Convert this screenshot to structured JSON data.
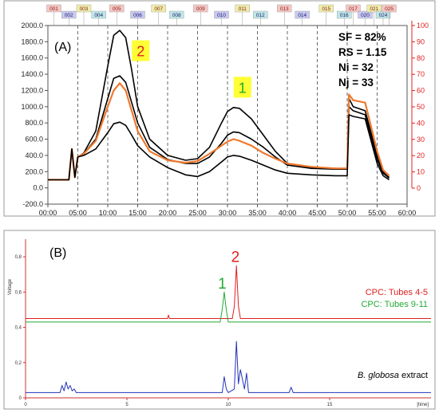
{
  "chart_data": [
    {
      "type": "line",
      "panel_label": "(A)",
      "x_unit": "mm:ss",
      "xlim": [
        0,
        60
      ],
      "x_ticks": [
        "00:00",
        "05:00",
        "10:00",
        "15:00",
        "20:00",
        "25:00",
        "30:00",
        "35:00",
        "40:00",
        "45:00",
        "50:00",
        "55:00",
        "60:00"
      ],
      "ylim": [
        -200,
        2000
      ],
      "y_ticks": [
        "-200.0",
        "0.0",
        "200.0",
        "400.0",
        "600.0",
        "800.0",
        "1000.0",
        "1200.0",
        "1400.0",
        "1600.0",
        "1800.0",
        "2000.0"
      ],
      "y2lim": [
        0,
        100
      ],
      "y2_ticks": [
        "0",
        "10",
        "20",
        "30",
        "40",
        "50",
        "60",
        "70",
        "80",
        "90",
        "100"
      ],
      "grid": "dashed vertical every 5 min",
      "tubes": [
        {
          "label": "001",
          "x": 1.0,
          "row": 0
        },
        {
          "label": "002",
          "x": 3.5,
          "row": 1
        },
        {
          "label": "003",
          "x": 6.0,
          "row": 0
        },
        {
          "label": "004",
          "x": 8.5,
          "row": 1
        },
        {
          "label": "005",
          "x": 11.5,
          "row": 0
        },
        {
          "label": "006",
          "x": 15.0,
          "row": 1
        },
        {
          "label": "007",
          "x": 18.5,
          "row": 0
        },
        {
          "label": "008",
          "x": 21.5,
          "row": 1
        },
        {
          "label": "009",
          "x": 25.5,
          "row": 0
        },
        {
          "label": "010",
          "x": 29.0,
          "row": 1
        },
        {
          "label": "011",
          "x": 32.5,
          "row": 0
        },
        {
          "label": "012",
          "x": 35.5,
          "row": 1
        },
        {
          "label": "013",
          "x": 39.5,
          "row": 0
        },
        {
          "label": "014",
          "x": 42.5,
          "row": 1
        },
        {
          "label": "015",
          "x": 46.5,
          "row": 0
        },
        {
          "label": "016",
          "x": 49.5,
          "row": 1
        },
        {
          "label": "017",
          "x": 51.0,
          "row": 0
        },
        {
          "label": "020",
          "x": 53.0,
          "row": 1
        },
        {
          "label": "021",
          "x": 54.5,
          "row": 0
        },
        {
          "label": "024",
          "x": 56.0,
          "row": 1
        },
        {
          "label": "025",
          "x": 57.0,
          "row": 0
        }
      ],
      "tube_colors": [
        "#f4c7c3",
        "#c9c9f0",
        "#eeeeaa",
        "#bfe6e6"
      ],
      "series": [
        {
          "color": "#000000",
          "x": [
            0,
            0.5,
            3.5,
            4,
            4.5,
            5,
            6,
            8,
            10,
            11,
            12,
            13,
            14,
            15,
            17,
            20,
            23,
            25,
            27,
            29,
            30,
            31,
            32,
            34,
            36,
            38,
            40,
            44,
            48,
            50,
            50.3,
            51,
            53,
            55,
            56,
            57
          ],
          "values": [
            100,
            100,
            100,
            480,
            130,
            380,
            430,
            700,
            1500,
            1880,
            1940,
            1850,
            1450,
            1000,
            600,
            400,
            340,
            360,
            500,
            800,
            940,
            990,
            980,
            850,
            650,
            450,
            300,
            250,
            240,
            230,
            1100,
            1000,
            950,
            400,
            200,
            130
          ]
        },
        {
          "color": "#000000",
          "x": [
            0,
            0.5,
            3.5,
            4,
            4.5,
            5,
            6,
            8,
            10,
            11,
            12,
            13,
            14,
            15,
            17,
            20,
            23,
            25,
            27,
            29,
            30,
            31,
            32,
            34,
            36,
            38,
            40,
            44,
            48,
            50,
            50.3,
            51,
            53,
            55,
            56,
            57
          ],
          "values": [
            100,
            100,
            100,
            480,
            130,
            380,
            420,
            600,
            1100,
            1350,
            1380,
            1300,
            1050,
            800,
            500,
            350,
            300,
            300,
            380,
            550,
            650,
            690,
            680,
            600,
            500,
            380,
            280,
            240,
            230,
            230,
            1000,
            950,
            900,
            350,
            180,
            120
          ]
        },
        {
          "color": "#ee7a30",
          "x": [
            0,
            0.5,
            3.5,
            4,
            4.5,
            5,
            6,
            8,
            10,
            11,
            12,
            13,
            14,
            15,
            17,
            20,
            23,
            25,
            27,
            29,
            30,
            31,
            32,
            34,
            36,
            38,
            40,
            44,
            48,
            50,
            50.3,
            51,
            53,
            55,
            56,
            57
          ],
          "values": [
            100,
            100,
            100,
            480,
            130,
            380,
            420,
            580,
            1000,
            1200,
            1290,
            1200,
            950,
            700,
            450,
            340,
            310,
            330,
            420,
            520,
            570,
            600,
            580,
            520,
            430,
            360,
            300,
            260,
            240,
            240,
            1150,
            1080,
            1050,
            450,
            220,
            150
          ]
        },
        {
          "color": "#000000",
          "x": [
            0,
            0.5,
            3.5,
            4,
            4.5,
            5,
            6,
            8,
            10,
            11,
            12,
            13,
            14,
            15,
            17,
            20,
            23,
            25,
            27,
            29,
            30,
            31,
            32,
            34,
            36,
            38,
            40,
            44,
            48,
            50,
            50.3,
            51,
            53,
            55,
            56,
            57
          ],
          "values": [
            100,
            100,
            100,
            480,
            130,
            380,
            400,
            480,
            680,
            790,
            810,
            770,
            650,
            520,
            380,
            250,
            160,
            140,
            200,
            320,
            380,
            400,
            390,
            340,
            280,
            220,
            180,
            160,
            150,
            150,
            900,
            880,
            850,
            300,
            150,
            100
          ]
        }
      ],
      "peak_labels": [
        {
          "text": "2",
          "x": 15.5,
          "y": 1680,
          "text_color": "#e02020",
          "bg": "#ffff33"
        },
        {
          "text": "1",
          "x": 32.5,
          "y": 1230,
          "text_color": "#22aa33",
          "bg": "#ffff33"
        }
      ],
      "stats": [
        "SF = 82%",
        "RS = 1.15",
        "Ni = 32",
        "Nj = 33"
      ]
    },
    {
      "type": "line",
      "panel_label": "(B)",
      "ylabel": "Voltage",
      "xlabel": "[time]",
      "xlim": [
        0,
        20
      ],
      "x_ticks": [
        "0",
        "5",
        "10",
        "15"
      ],
      "ylim": [
        0,
        0.9
      ],
      "y_ticks": [
        "0",
        "0,2",
        "0,4",
        "0,6",
        "0,8"
      ],
      "series": [
        {
          "name": "CPC: Tubes 4-5",
          "color": "#e02020",
          "baseline": 0.45,
          "x": [
            0,
            7,
            7.05,
            7.1,
            10.2,
            10.3,
            10.4,
            10.5,
            10.6,
            20
          ],
          "values": [
            0.45,
            0.45,
            0.47,
            0.45,
            0.45,
            0.52,
            0.75,
            0.52,
            0.45,
            0.45
          ]
        },
        {
          "name": "CPC: Tubes 9-11",
          "color": "#22aa33",
          "baseline": 0.43,
          "x": [
            0,
            9.6,
            9.7,
            9.8,
            9.9,
            10.0,
            20
          ],
          "values": [
            0.43,
            0.43,
            0.5,
            0.6,
            0.5,
            0.43,
            0.43
          ]
        },
        {
          "name": "B. globosa extract",
          "color": "#2233bb",
          "baseline": 0.03,
          "x": [
            0,
            1.7,
            1.8,
            1.9,
            2.0,
            2.1,
            2.2,
            2.3,
            2.4,
            2.5,
            9.7,
            9.8,
            9.9,
            10.0,
            10.3,
            10.4,
            10.5,
            10.6,
            10.8,
            10.9,
            11.0,
            13.0,
            13.1,
            13.2,
            20
          ],
          "values": [
            0.03,
            0.03,
            0.07,
            0.04,
            0.09,
            0.05,
            0.07,
            0.04,
            0.05,
            0.03,
            0.03,
            0.12,
            0.05,
            0.03,
            0.05,
            0.32,
            0.08,
            0.16,
            0.05,
            0.14,
            0.03,
            0.03,
            0.06,
            0.03,
            0.03
          ]
        }
      ],
      "peak_labels": [
        {
          "text": "1",
          "x": 9.7,
          "y": 0.62,
          "text_color": "#22aa33"
        },
        {
          "text": "2",
          "x": 10.35,
          "y": 0.77,
          "text_color": "#e02020"
        }
      ],
      "legend_right": [
        "CPC: Tubes 4-5",
        "CPC: Tubes 9-11"
      ],
      "extract_label_italic": "B. globosa",
      "extract_label_rest": " extract"
    }
  ]
}
